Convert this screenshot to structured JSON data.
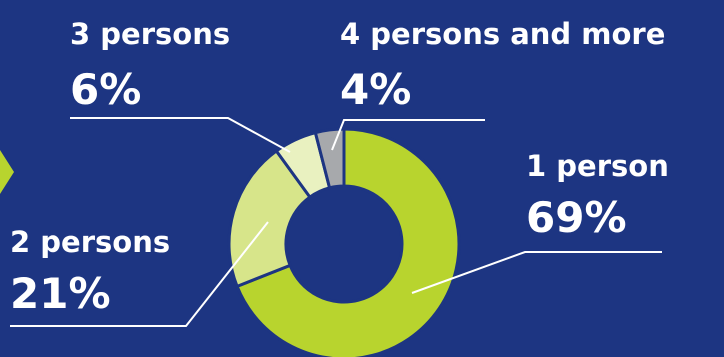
{
  "chart_data": {
    "type": "pie",
    "style": "donut",
    "categories": [
      "1 person",
      "2 persons",
      "3 persons",
      "4 persons and more"
    ],
    "values": [
      69,
      21,
      6,
      4
    ],
    "labels": [
      "69%",
      "21%",
      "6%",
      "4%"
    ],
    "colors": [
      "#b8d42e",
      "#d7e58a",
      "#e9f1c0",
      "#a7a9ac"
    ],
    "legend": "none"
  },
  "theme": {
    "background": "#1d3582",
    "text": "#ffffff",
    "arrow": "#b8d42e"
  }
}
